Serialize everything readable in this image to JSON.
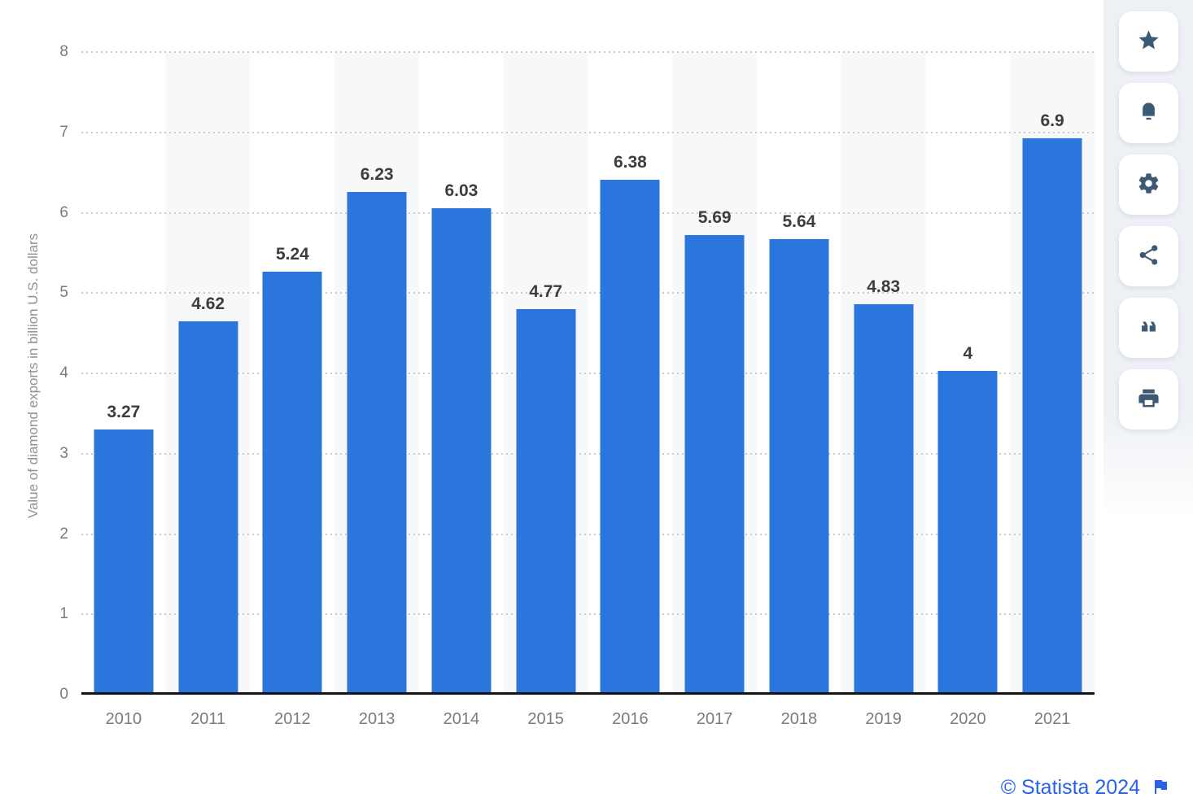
{
  "chart_data": {
    "type": "bar",
    "title": "",
    "categories": [
      "2010",
      "2011",
      "2012",
      "2013",
      "2014",
      "2015",
      "2016",
      "2017",
      "2018",
      "2019",
      "2020",
      "2021"
    ],
    "values": [
      3.27,
      4.62,
      5.24,
      6.23,
      6.03,
      4.77,
      6.38,
      5.69,
      5.64,
      4.83,
      4,
      6.9
    ],
    "bar_labels": [
      "3.27",
      "4.62",
      "5.24",
      "6.23",
      "6.03",
      "4.77",
      "6.38",
      "5.69",
      "5.64",
      "4.83",
      "4",
      "6.9"
    ],
    "xlabel": "",
    "ylabel": "Value of diamond exports in billion U.S. dollars",
    "ylim": [
      0,
      8
    ],
    "yticks": [
      "0",
      "1",
      "2",
      "3",
      "4",
      "5",
      "6",
      "7",
      "8"
    ],
    "grid": "horizontal-dotted",
    "legend": "none",
    "bar_color": "#2b76dc",
    "column_stripe_color": "#f7f8f9"
  },
  "toolbar": {
    "icon_color": "#3d5a75",
    "buttons": [
      {
        "id": "favorite",
        "icon": "star-icon"
      },
      {
        "id": "alerts",
        "icon": "bell-icon"
      },
      {
        "id": "settings",
        "icon": "gear-icon"
      },
      {
        "id": "share",
        "icon": "share-icon"
      },
      {
        "id": "cite",
        "icon": "quote-icon"
      },
      {
        "id": "print",
        "icon": "print-icon"
      }
    ]
  },
  "footer": {
    "attribution": "© Statista 2024",
    "link_color": "#2862e9"
  }
}
